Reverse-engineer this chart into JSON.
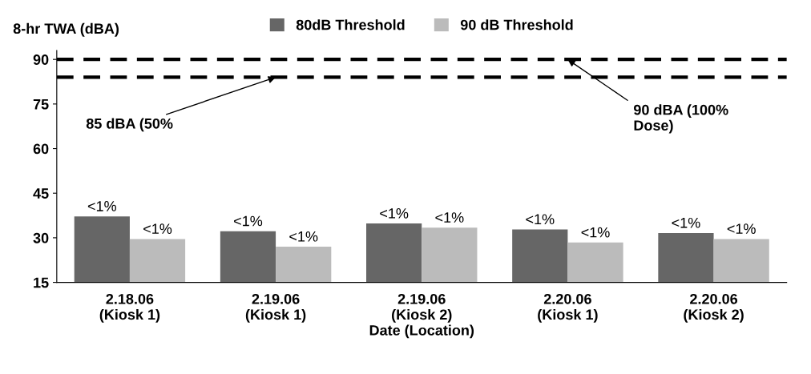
{
  "chart_data": {
    "type": "bar",
    "ylabel": "8-hr TWA (dBA)",
    "xlabel": "Date (Location)",
    "categories": [
      "2.18.06\n(Kiosk 1)",
      "2.19.06\n(Kiosk 1)",
      "2.19.06\n(Kiosk 2)",
      "2.20.06\n(Kiosk 1)",
      "2.20.06\n(Kiosk 2)"
    ],
    "series": [
      {
        "name": "80dB Threshold",
        "color": "#666666",
        "values": [
          37.2,
          32.2,
          34.8,
          32.8,
          31.6
        ],
        "value_labels": [
          "<1%",
          "<1%",
          "<1%",
          "<1%",
          "<1%"
        ]
      },
      {
        "name": "90 dB Threshold",
        "color": "#bbbbbb",
        "values": [
          29.6,
          27,
          33.4,
          28.4,
          29.6
        ],
        "value_labels": [
          "<1%",
          "<1%",
          "<1%",
          "<1%",
          "<1%"
        ]
      }
    ],
    "ylim": [
      15,
      93
    ],
    "yticks": [
      15,
      30,
      45,
      60,
      75,
      90
    ],
    "ref_lines": [
      {
        "axis": "y",
        "value": 90,
        "line_style": "dashed",
        "color": "#000000"
      },
      {
        "axis": "y",
        "value": 84,
        "line_style": "dashed",
        "color": "#000000"
      }
    ],
    "annotations": [
      {
        "text": "85 dBA (50%",
        "x": "2.19.06\n(Kiosk 1)",
        "y": 84
      },
      {
        "text": "90 dBA (100%\nDose)",
        "x": "2.20.06\n(Kiosk 1)",
        "y": 90
      }
    ],
    "legend": "top",
    "grid": false
  }
}
